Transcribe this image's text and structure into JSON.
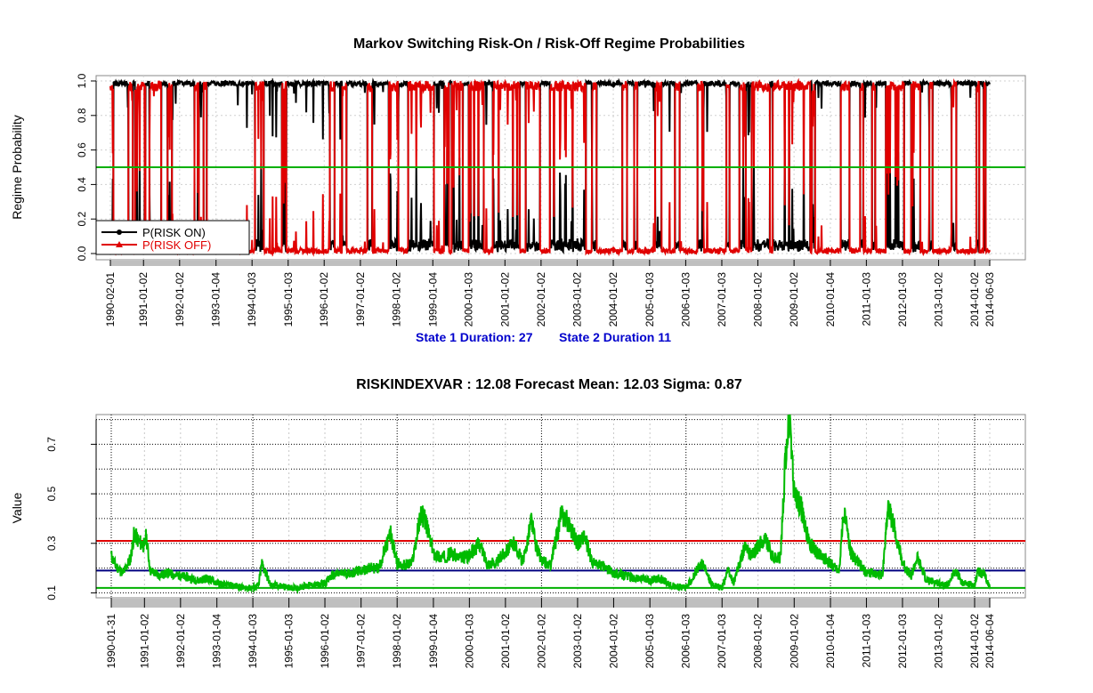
{
  "chart_data": [
    {
      "type": "line",
      "title": "Markov Switching Risk-On / Risk-Off Regime Probabilities",
      "xlabel": "",
      "ylabel": "Regime Probability",
      "xlim": [
        "1990-02-01",
        "2014-06-03"
      ],
      "ylim": [
        0,
        1
      ],
      "yticks": [
        "0.0",
        "0.2",
        "0.4",
        "0.6",
        "0.8",
        "1.0"
      ],
      "x_tick_labels": [
        "1990-02-01",
        "1991-01-02",
        "1992-01-02",
        "1993-01-04",
        "1994-01-03",
        "1995-01-03",
        "1996-01-02",
        "1997-01-02",
        "1998-01-02",
        "1999-01-04",
        "2000-01-03",
        "2001-01-02",
        "2002-01-02",
        "2003-01-02",
        "2004-01-02",
        "2005-01-03",
        "2006-01-03",
        "2007-01-03",
        "2008-01-02",
        "2009-01-02",
        "2010-01-04",
        "2011-01-03",
        "2012-01-03",
        "2013-01-02",
        "2014-01-02",
        "2014-06-03"
      ],
      "grid": true,
      "legend_position": "bottom-left",
      "series": [
        {
          "name": "P(RISK ON)",
          "color": "#000000",
          "marker": "circle"
        },
        {
          "name": "P(RISK OFF)",
          "color": "#e00000",
          "marker": "triangle"
        }
      ],
      "regime_intervals": {
        "note_state": "RISK OFF",
        "periods": [
          [
            "1990-02-01",
            "1990-03-01"
          ],
          [
            "1990-08-01",
            "1990-09-15"
          ],
          [
            "1990-10-10",
            "1991-01-20"
          ],
          [
            "1991-03-01",
            "1991-07-01"
          ],
          [
            "1991-09-01",
            "1991-10-15"
          ],
          [
            "1992-06-01",
            "1992-07-15"
          ],
          [
            "1992-09-01",
            "1992-10-01"
          ],
          [
            "1994-02-01",
            "1994-05-01"
          ],
          [
            "1994-11-01",
            "1994-12-15"
          ],
          [
            "1996-03-01",
            "1996-04-15"
          ],
          [
            "1996-07-01",
            "1996-08-15"
          ],
          [
            "1997-03-15",
            "1997-05-01"
          ],
          [
            "1997-10-15",
            "1998-01-20"
          ],
          [
            "1998-05-01",
            "1999-01-15"
          ],
          [
            "1999-05-01",
            "1999-06-15"
          ],
          [
            "1999-07-15",
            "1999-11-01"
          ],
          [
            "2000-01-01",
            "2000-06-01"
          ],
          [
            "2000-09-01",
            "2001-06-01"
          ],
          [
            "2001-08-01",
            "2001-12-20"
          ],
          [
            "2002-04-01",
            "2003-04-01"
          ],
          [
            "2003-06-01",
            "2003-07-15"
          ],
          [
            "2004-04-01",
            "2004-05-20"
          ],
          [
            "2004-08-01",
            "2004-09-01"
          ],
          [
            "2005-03-01",
            "2005-05-01"
          ],
          [
            "2005-09-15",
            "2005-11-01"
          ],
          [
            "2006-05-01",
            "2006-07-01"
          ],
          [
            "2007-02-20",
            "2007-03-20"
          ],
          [
            "2007-07-01",
            "2007-09-01"
          ],
          [
            "2007-11-01",
            "2008-05-01"
          ],
          [
            "2008-06-01",
            "2009-06-15"
          ],
          [
            "2009-07-01",
            "2009-08-01"
          ],
          [
            "2010-04-20",
            "2010-07-15"
          ],
          [
            "2010-11-01",
            "2010-12-01"
          ],
          [
            "2011-03-01",
            "2011-04-01"
          ],
          [
            "2011-07-20",
            "2012-01-20"
          ],
          [
            "2012-04-01",
            "2012-07-01"
          ],
          [
            "2012-10-01",
            "2012-11-01"
          ],
          [
            "2013-05-15",
            "2013-07-01"
          ],
          [
            "2014-01-20",
            "2014-02-15"
          ],
          [
            "2014-04-01",
            "2014-04-20"
          ]
        ]
      },
      "hlines": [
        {
          "value": 0.5,
          "color": "#00b000"
        }
      ]
    },
    {
      "type": "line",
      "title": "RISKINDEXVAR :  12.08 Forecast Mean: 12.03  Sigma: 0.87",
      "xlabel": "",
      "ylabel": "Value",
      "xlim": [
        "1990-01-31",
        "2014-06-04"
      ],
      "ylim": [
        0.08,
        0.82
      ],
      "yticks": [
        "0.1",
        "0.3",
        "0.5",
        "0.7"
      ],
      "x_tick_labels": [
        "1990-01-31",
        "1991-01-02",
        "1992-01-02",
        "1993-01-04",
        "1994-01-03",
        "1995-01-03",
        "1996-01-02",
        "1997-01-02",
        "1998-01-02",
        "1999-01-04",
        "2000-01-03",
        "2001-01-02",
        "2002-01-02",
        "2003-01-02",
        "2004-01-02",
        "2005-01-03",
        "2006-01-03",
        "2007-01-03",
        "2008-01-02",
        "2009-01-02",
        "2010-01-04",
        "2011-01-03",
        "2012-01-03",
        "2013-01-02",
        "2014-01-02",
        "2014-06-04"
      ],
      "grid": true,
      "series": [
        {
          "color": "#00bb00",
          "x": [
            "1990-01-31",
            "1990-03-15",
            "1990-06-01",
            "1990-08-15",
            "1990-09-20",
            "1990-11-01",
            "1991-01-02",
            "1991-01-20",
            "1991-03-01",
            "1991-06-01",
            "1991-09-01",
            "1991-11-15",
            "1992-01-02",
            "1992-04-01",
            "1992-07-01",
            "1992-10-01",
            "1993-01-04",
            "1993-04-01",
            "1993-07-01",
            "1993-10-01",
            "1994-01-03",
            "1994-03-01",
            "1994-04-05",
            "1994-07-01",
            "1994-10-01",
            "1995-01-03",
            "1995-04-01",
            "1995-07-01",
            "1995-10-01",
            "1996-01-02",
            "1996-03-15",
            "1996-07-15",
            "1996-10-01",
            "1997-01-02",
            "1997-04-01",
            "1997-07-01",
            "1997-10-28",
            "1998-01-02",
            "1998-03-01",
            "1998-06-01",
            "1998-08-31",
            "1998-10-08",
            "1999-01-04",
            "1999-04-01",
            "1999-07-01",
            "1999-10-01",
            "2000-01-03",
            "2000-04-14",
            "2000-07-01",
            "2000-10-01",
            "2001-01-02",
            "2001-04-04",
            "2001-07-01",
            "2001-09-21",
            "2001-11-01",
            "2002-01-02",
            "2002-04-01",
            "2002-07-24",
            "2002-10-10",
            "2003-01-02",
            "2003-03-12",
            "2003-06-01",
            "2003-09-01",
            "2004-01-02",
            "2004-05-01",
            "2004-08-01",
            "2005-01-03",
            "2005-04-15",
            "2005-08-01",
            "2006-01-03",
            "2006-06-13",
            "2006-10-01",
            "2007-01-03",
            "2007-02-27",
            "2007-05-01",
            "2007-08-16",
            "2007-11-01",
            "2008-01-22",
            "2008-03-17",
            "2008-06-01",
            "2008-08-15",
            "2008-10-10",
            "2008-11-20",
            "2009-01-02",
            "2009-03-09",
            "2009-06-01",
            "2009-09-01",
            "2010-01-04",
            "2010-04-01",
            "2010-05-20",
            "2010-08-01",
            "2010-11-01",
            "2011-01-03",
            "2011-04-01",
            "2011-06-15",
            "2011-08-08",
            "2011-10-03",
            "2012-01-03",
            "2012-04-01",
            "2012-06-01",
            "2012-09-01",
            "2013-01-02",
            "2013-04-01",
            "2013-06-20",
            "2013-09-01",
            "2014-01-02",
            "2014-02-03",
            "2014-04-11",
            "2014-06-04"
          ],
          "values": [
            0.25,
            0.21,
            0.18,
            0.24,
            0.34,
            0.31,
            0.29,
            0.33,
            0.19,
            0.17,
            0.18,
            0.17,
            0.17,
            0.16,
            0.15,
            0.16,
            0.14,
            0.13,
            0.13,
            0.12,
            0.12,
            0.13,
            0.22,
            0.13,
            0.13,
            0.12,
            0.12,
            0.13,
            0.13,
            0.14,
            0.17,
            0.18,
            0.18,
            0.19,
            0.2,
            0.2,
            0.34,
            0.22,
            0.21,
            0.22,
            0.42,
            0.4,
            0.26,
            0.24,
            0.26,
            0.24,
            0.25,
            0.3,
            0.22,
            0.22,
            0.27,
            0.3,
            0.22,
            0.4,
            0.3,
            0.23,
            0.21,
            0.42,
            0.38,
            0.3,
            0.33,
            0.22,
            0.21,
            0.18,
            0.17,
            0.16,
            0.15,
            0.16,
            0.13,
            0.12,
            0.22,
            0.13,
            0.12,
            0.19,
            0.14,
            0.28,
            0.25,
            0.3,
            0.32,
            0.24,
            0.24,
            0.67,
            0.79,
            0.5,
            0.45,
            0.3,
            0.26,
            0.22,
            0.19,
            0.43,
            0.26,
            0.21,
            0.18,
            0.18,
            0.17,
            0.45,
            0.38,
            0.22,
            0.17,
            0.24,
            0.15,
            0.14,
            0.13,
            0.19,
            0.14,
            0.13,
            0.19,
            0.17,
            0.12
          ]
        }
      ],
      "hlines": [
        {
          "value": 0.31,
          "color": "#e00000"
        },
        {
          "value": 0.19,
          "color": "#000080"
        },
        {
          "value": 0.12,
          "color": "#00b000"
        }
      ]
    }
  ],
  "state_durations": {
    "state1": "State 1 Duration: 27",
    "state2": "State 2 Duration 11"
  }
}
